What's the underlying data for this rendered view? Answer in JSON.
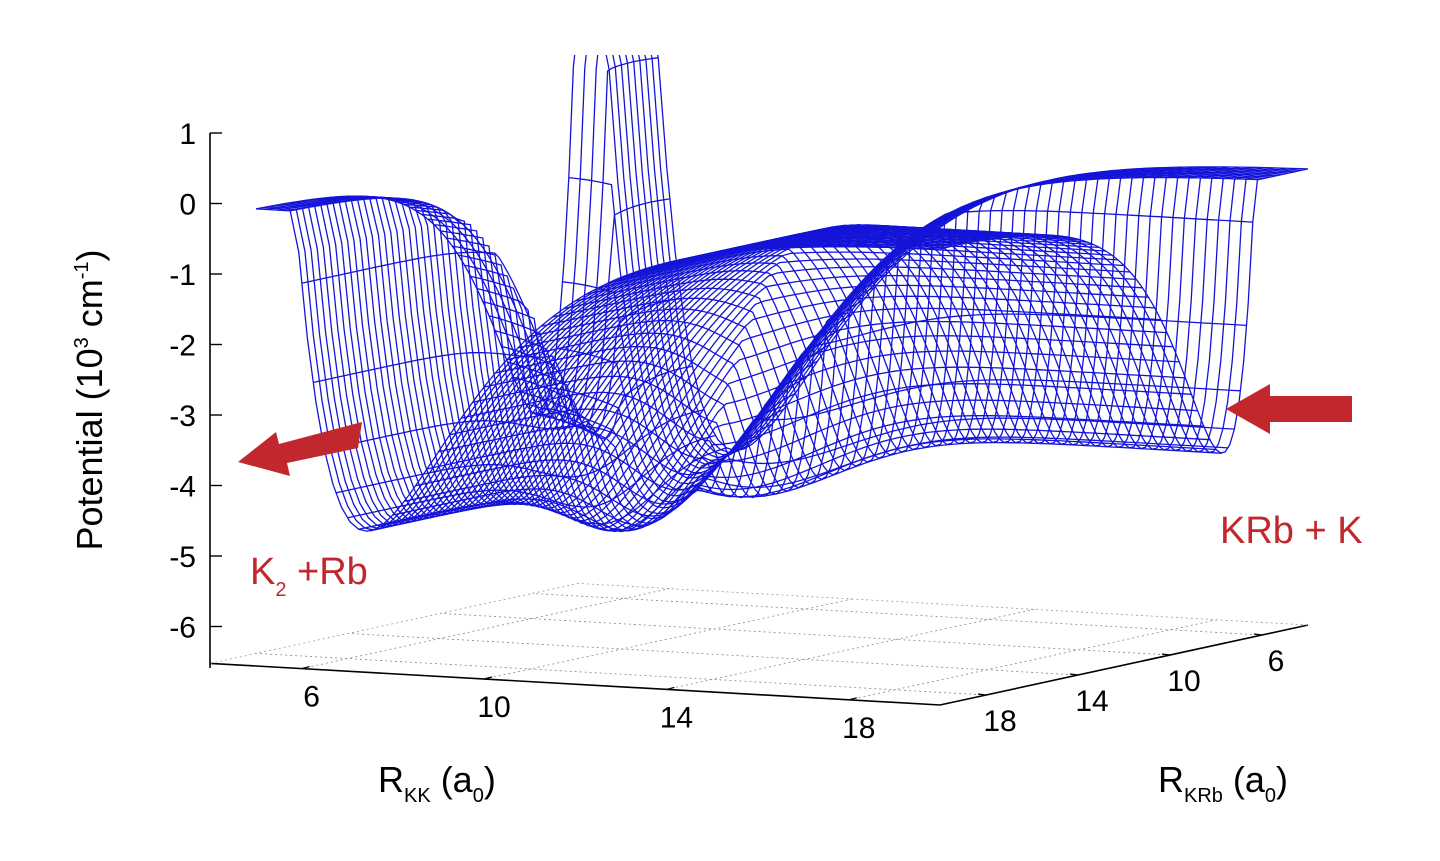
{
  "chart_data": {
    "type": "surface3d",
    "title": "",
    "z_axis": {
      "label": "Potential (10",
      "label_sup": "3",
      "label_unit": " cm",
      "label_unit_sup": "-1",
      "label_close": ")",
      "range": [
        -6.5,
        1.3
      ],
      "ticks": [
        "1",
        "0",
        "-1",
        "-2",
        "-3",
        "-4",
        "-5",
        "-6"
      ]
    },
    "x_axis": {
      "label_main": "R",
      "label_sub": "KK",
      "label_rest": " (a",
      "label_rest_sub": "0",
      "label_close": ")",
      "range": [
        4,
        20
      ],
      "ticks": [
        "6",
        "10",
        "14",
        "18"
      ]
    },
    "y_axis": {
      "label_main": "R",
      "label_sub": "KRb",
      "label_rest": " (a",
      "label_rest_sub": "0",
      "label_close": ")",
      "range": [
        4,
        20
      ],
      "ticks": [
        "6",
        "10",
        "14",
        "18"
      ]
    },
    "surface": {
      "minimum": {
        "potential": -5.3,
        "note": "well near R_KK≈9, R_KRb≈9"
      },
      "asymptote_left_potential": -4.5,
      "asymptote_right_potential": -3.8,
      "color": "#1414d8"
    },
    "annotations": [
      {
        "id": "left",
        "text_main": "K",
        "text_sub": "2",
        "text_rest": " +Rb",
        "color": "#c1272d"
      },
      {
        "id": "right",
        "text": "KRb + K",
        "color": "#c1272d"
      }
    ],
    "grid": true
  }
}
